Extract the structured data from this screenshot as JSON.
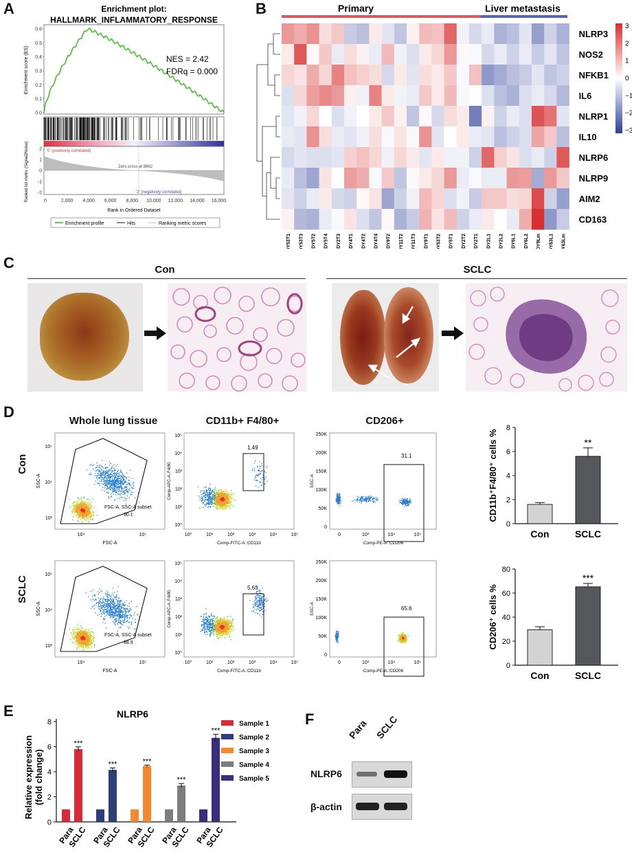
{
  "panels": {
    "a": "A",
    "b": "B",
    "c": "C",
    "d": "D",
    "e": "E",
    "f": "F"
  },
  "gsea": {
    "title1": "Enrichment plot:",
    "title2": "HALLMARK_INFLAMMATORY_RESPONSE",
    "nes": "NES = 2.42",
    "fdr": "FDRq = 0.000",
    "ylabel_es": "Enrichment score (ES)",
    "ylabel_rank": "Ranked list metric (Signal2Noise)",
    "xlabel": "Rank in Ordered Dataset",
    "pos_label": "'0' (positively correlated)",
    "neg_label": "'2' (negatively correlated)",
    "zero_cross": "Zero cross at 8862",
    "es_ticks": [
      "0.6",
      "0.5",
      "0.4",
      "0.3",
      "0.2",
      "0.1",
      "0.0"
    ],
    "rank_ticks": [
      "2",
      "1",
      "0",
      "-1",
      "-2"
    ],
    "x_ticks": [
      "0",
      "2,000",
      "4,000",
      "6,000",
      "8,000",
      "10,000",
      "12,000",
      "14,000",
      "16,000"
    ],
    "legend": [
      "Enrichment profile",
      "Hits",
      "Ranking metric scores"
    ]
  },
  "heatmap": {
    "group_primary": "Primary",
    "group_liver": "Liver metastasis",
    "genes": [
      "NLRP3",
      "NOS2",
      "NFKB1",
      "IL6",
      "NLRP1",
      "IL10",
      "NLRP6",
      "NLRP9",
      "AIM2",
      "CD163"
    ],
    "samples": [
      "DY53T1",
      "DY53T3",
      "DY5T2",
      "DY5T4",
      "DY2T3",
      "DY4T1",
      "DY4T2",
      "DY4T4",
      "DY9T2",
      "DY11T2",
      "DY11T3",
      "DY9T1",
      "DY53T2",
      "DY5T1",
      "DY2T2",
      "DY2T1",
      "DY2L1",
      "DY2L2",
      "DY6L1",
      "DY6L2",
      "DY9Lm",
      "DY63L1",
      "DY63Lm"
    ],
    "scale_ticks": [
      "3",
      "2",
      "1",
      "0",
      "−1",
      "−2",
      "−3"
    ],
    "values": [
      [
        1.5,
        1.2,
        1.6,
        0.5,
        0.8,
        -0.8,
        -1.0,
        0.3,
        -0.4,
        -0.9,
        0.2,
        1.0,
        0.9,
        2.2,
        -0.2,
        -0.6,
        -0.3,
        -1.2,
        -1.0,
        -0.4,
        -1.5,
        -0.7,
        -1.2
      ],
      [
        0.3,
        2.4,
        0.1,
        0.8,
        -0.3,
        0.5,
        0.2,
        -0.3,
        1.0,
        -0.2,
        -0.5,
        0.3,
        0.6,
        1.5,
        0.1,
        -0.1,
        -0.6,
        -0.3,
        -0.7,
        -0.3,
        -0.8,
        -0.4,
        -0.9
      ],
      [
        0.6,
        0.4,
        1.2,
        0.6,
        1.8,
        0.9,
        0.7,
        0.5,
        -0.6,
        0.3,
        -0.4,
        0.5,
        0.3,
        0.8,
        -0.1,
        0.9,
        -1.6,
        -1.3,
        -1.0,
        -0.8,
        -0.4,
        -0.9,
        -0.7
      ],
      [
        -0.5,
        0.6,
        1.4,
        1.7,
        1.5,
        0.2,
        -0.2,
        1.8,
        0.3,
        -0.2,
        -0.3,
        0.8,
        0.3,
        1.0,
        -0.1,
        0.0,
        -0.5,
        -1.0,
        -1.2,
        -0.5,
        -0.3,
        -0.6,
        -1.1
      ],
      [
        -0.4,
        -0.2,
        0.6,
        0.0,
        -0.5,
        -0.2,
        0.0,
        0.3,
        0.8,
        0.2,
        -0.9,
        0.1,
        -0.6,
        0.5,
        0.3,
        -2.0,
        0.2,
        -0.7,
        -0.3,
        -0.5,
        2.5,
        2.0,
        -0.4
      ],
      [
        -0.3,
        -0.4,
        1.6,
        0.5,
        -0.3,
        -0.4,
        -0.2,
        0.5,
        -0.1,
        0.4,
        -0.1,
        1.6,
        -0.4,
        0.0,
        0.3,
        -0.3,
        -0.4,
        -1.0,
        -0.7,
        -0.5,
        1.3,
        0.8,
        -1.0
      ],
      [
        -0.6,
        -0.4,
        -0.5,
        -0.5,
        -0.4,
        0.7,
        0.9,
        0.6,
        -0.2,
        0.6,
        0.3,
        -0.4,
        0.3,
        -0.2,
        -0.2,
        -0.7,
        2.2,
        0.7,
        0.4,
        -0.5,
        -0.3,
        -0.7,
        2.4
      ],
      [
        -0.3,
        -1.0,
        -1.4,
        0.4,
        0.0,
        1.4,
        1.2,
        -0.1,
        0.8,
        -0.9,
        0.1,
        0.3,
        0.6,
        1.5,
        -0.3,
        -0.1,
        -0.3,
        -0.3,
        1.5,
        1.4,
        -1.3,
        1.5,
        0.8
      ],
      [
        -0.4,
        -0.7,
        -0.3,
        0.3,
        -0.6,
        -0.7,
        0.1,
        0.4,
        -1.4,
        -0.7,
        -0.2,
        1.0,
        0.6,
        -0.5,
        -0.2,
        -0.8,
        0.8,
        0.8,
        0.5,
        0.6,
        2.6,
        -0.7,
        -1.5
      ],
      [
        0.2,
        -1.1,
        -1.2,
        -0.3,
        -0.1,
        0.4,
        -0.5,
        -0.9,
        0.1,
        -1.2,
        -0.8,
        1.1,
        0.4,
        1.0,
        -0.7,
        -0.3,
        0.3,
        0.0,
        -0.3,
        1.2,
        3.0,
        -1.6,
        -0.8
      ]
    ]
  },
  "panelC": {
    "con": "Con",
    "sclc": "SCLC"
  },
  "flow": {
    "col1": "Whole lung tissue",
    "col2": "CD11b+ F4/80+",
    "col3": "CD206+",
    "row_con": "Con",
    "row_sclc": "SCLC",
    "ssc": "SSC-A",
    "fsc": "FSC-A",
    "apc": "Comp-APC-A::F4/80",
    "fitc": "Comp-FITC-A::CD11b",
    "pe": "Comp-PE-A::CD206",
    "subset_label": "FSC-A, SSC-A subset",
    "con_subset": "90.1",
    "sclc_subset": "88.9",
    "con_f480": "1.49",
    "sclc_f480": "5.63",
    "con_cd206": "31.1",
    "sclc_cd206": "65.6",
    "log_ticks_x": [
      "10⁰",
      "10¹",
      "10²",
      "10³",
      "10⁴",
      "10⁵"
    ],
    "ssc_ticks": [
      "250K",
      "200K",
      "150K",
      "100K",
      "50K",
      "0"
    ],
    "pe_ticks": [
      "0",
      "10³",
      "10⁴",
      "10⁵"
    ],
    "fsc_ticks": [
      "10⁴",
      "10⁵"
    ],
    "ssc_log_ticks": [
      "10⁵",
      "10⁴",
      "10³"
    ]
  },
  "bar_d1": {
    "ylabel": "CD11b⁺F4/80⁺ cells %",
    "categories": [
      "Con",
      "SCLC"
    ],
    "values": [
      1.6,
      5.6
    ],
    "errors": [
      0.15,
      0.7
    ],
    "ylim": [
      0,
      8
    ],
    "ticks": [
      "0",
      "2",
      "4",
      "6",
      "8"
    ],
    "sig": "**"
  },
  "bar_d2": {
    "ylabel": "CD206⁺ cells %",
    "categories": [
      "Con",
      "SCLC"
    ],
    "values": [
      29.5,
      65.2
    ],
    "errors": [
      2.5,
      2.8
    ],
    "ylim": [
      0,
      80
    ],
    "ticks": [
      "0",
      "20",
      "40",
      "60",
      "80"
    ],
    "sig": "***"
  },
  "chart_data": {
    "type": "bar",
    "title": "NLRP6",
    "ylabel": "Relative expression (fold change)",
    "categories": [
      "Para",
      "SCLC"
    ],
    "ylim": [
      0,
      8
    ],
    "ticks": [
      "0",
      "2",
      "4",
      "6",
      "8"
    ],
    "series": [
      {
        "name": "Sample 1",
        "values": [
          1,
          5.8
        ],
        "error": [
          0,
          0.18
        ],
        "color": "#d62b39"
      },
      {
        "name": "Sample 2",
        "values": [
          1,
          4.15
        ],
        "error": [
          0,
          0.15
        ],
        "color": "#2b3f7a"
      },
      {
        "name": "Sample 3",
        "values": [
          1,
          4.45
        ],
        "error": [
          0,
          0.08
        ],
        "color": "#f2882f"
      },
      {
        "name": "Sample 4",
        "values": [
          1,
          2.9
        ],
        "error": [
          0,
          0.16
        ],
        "color": "#7d7d7d"
      },
      {
        "name": "Sample 5",
        "values": [
          1,
          6.7
        ],
        "error": [
          0,
          0.28
        ],
        "color": "#3b2e78"
      }
    ],
    "sig": "***"
  },
  "blot": {
    "lane1": "Para",
    "lane2": "SCLC",
    "band1": "NLRP6",
    "band2": "β-actin"
  }
}
